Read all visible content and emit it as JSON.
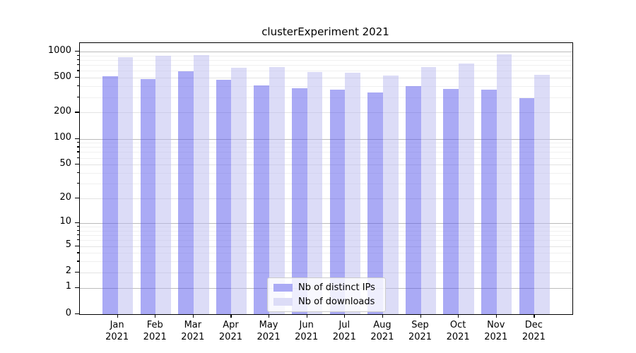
{
  "title": "clusterExperiment 2021",
  "colors": {
    "bar_distinct_ips": "#aaaaf5",
    "bar_downloads": "#dcdcf7",
    "bar_distinct_ips_fill": "rgba(85,85,235,0.5)",
    "bar_downloads_fill": "rgba(185,185,240,0.5)",
    "gridline_major": "#bbbbbb",
    "gridline_minor": "#e3e3e3",
    "gridline_faint": "#f0f0f0",
    "axis": "#000000",
    "legend_border": "#cccccc"
  },
  "chart_data": {
    "type": "bar",
    "title": "clusterExperiment 2021",
    "xlabel": "",
    "ylabel": "",
    "categories": [
      "Jan 2021",
      "Feb 2021",
      "Mar 2021",
      "Apr 2021",
      "May 2021",
      "Jun 2021",
      "Jul 2021",
      "Aug 2021",
      "Sep 2021",
      "Oct 2021",
      "Nov 2021",
      "Dec 2021"
    ],
    "series": [
      {
        "name": "Nb of distinct IPs",
        "values": [
          520,
          485,
          595,
          476,
          407,
          378,
          367,
          342,
          400,
          371,
          367,
          293
        ]
      },
      {
        "name": "Nb of downloads",
        "values": [
          870,
          890,
          920,
          650,
          670,
          580,
          575,
          530,
          660,
          735,
          935,
          540
        ]
      }
    ],
    "y_scale": "log1p",
    "y_ticks": [
      0,
      1,
      2,
      5,
      10,
      20,
      50,
      100,
      200,
      500,
      1000
    ],
    "y_major_ticks": [
      1,
      10,
      100,
      1000
    ],
    "y_minor_unlabeled": [
      3,
      4,
      6,
      7,
      8,
      9,
      30,
      40,
      60,
      70,
      80,
      90,
      300,
      400,
      600,
      700,
      800,
      900
    ],
    "ylim": [
      0,
      1250
    ],
    "grid": "on",
    "legend_position": "lower center"
  }
}
